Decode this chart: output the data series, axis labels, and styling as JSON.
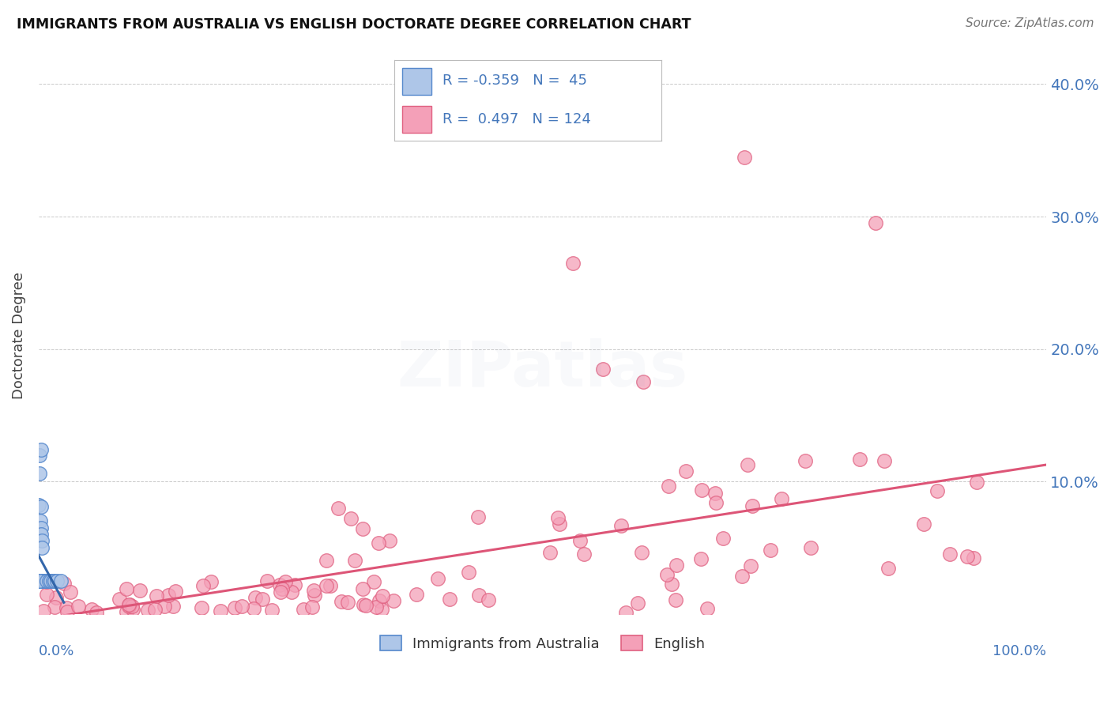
{
  "title": "IMMIGRANTS FROM AUSTRALIA VS ENGLISH DOCTORATE DEGREE CORRELATION CHART",
  "source": "Source: ZipAtlas.com",
  "ylabel": "Doctorate Degree",
  "legend_blue_label": "Immigrants from Australia",
  "legend_pink_label": "English",
  "R_blue": "-0.359",
  "N_blue": "45",
  "R_pink": "0.497",
  "N_pink": "124",
  "blue_color": "#aec6e8",
  "blue_edge_color": "#5588cc",
  "pink_color": "#f4a0b8",
  "pink_edge_color": "#e06080",
  "blue_line_color": "#3366aa",
  "pink_line_color": "#dd5577",
  "title_color": "#111111",
  "axis_label_color": "#4477bb",
  "grid_color": "#bbbbbb",
  "background_color": "#ffffff",
  "watermark_color": "#8899bb",
  "xlim": [
    0.0,
    1.0
  ],
  "ylim": [
    0.0,
    0.42
  ],
  "yticks": [
    0.0,
    0.1,
    0.2,
    0.3,
    0.4
  ],
  "ytick_labels": [
    "",
    "10.0%",
    "20.0%",
    "30.0%",
    "40.0%"
  ]
}
